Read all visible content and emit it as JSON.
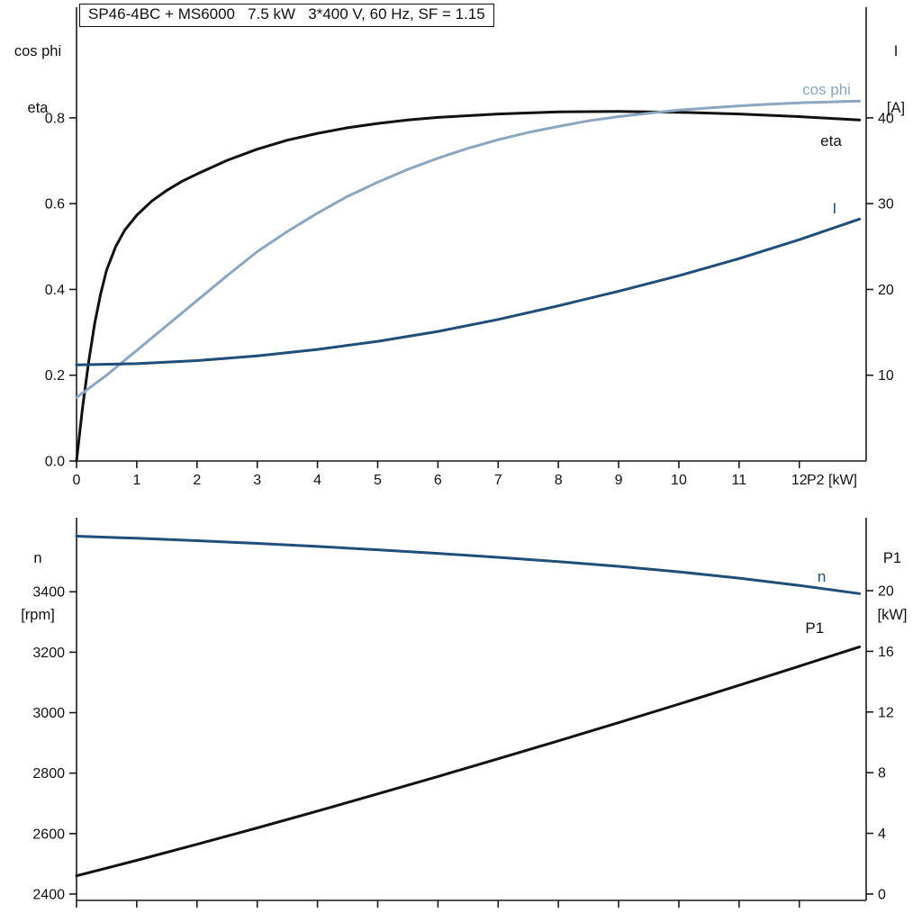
{
  "title_box": "SP46-4BC + MS6000   7.5 kW   3*400 V, 60 Hz, SF = 1.15",
  "colors": {
    "axis": "#1a1a1a",
    "black": "#111111",
    "dark_blue": "#1f4e79",
    "light_blue": "#8ca6c0"
  },
  "corner_labels": {
    "top_left_line1": "cos phi",
    "top_left_line2": "eta",
    "top_right_line1": "I",
    "top_right_line2": "[A]",
    "bottom_left_line1": "n",
    "bottom_left_line2": "[rpm]",
    "bottom_right_line1": "P1",
    "bottom_right_line2": "[kW]"
  },
  "chart_data": [
    {
      "type": "line",
      "title": "SP46-4BC + MS6000   7.5 kW   3*400 V, 60 Hz, SF = 1.15",
      "xlabel": "P2 [kW]",
      "x_range": [
        0,
        13.11
      ],
      "x_ticks": [
        0,
        1,
        2,
        3,
        4,
        5,
        6,
        7,
        8,
        9,
        10,
        11,
        12
      ],
      "x_tick_labels": [
        "0",
        "1",
        "2",
        "3",
        "4",
        "5",
        "6",
        "7",
        "8",
        "9",
        "10",
        "11",
        "12"
      ],
      "show_x_tick_labels": true,
      "grid": false,
      "left_axis": {
        "title": "cos phi / eta",
        "range": [
          0,
          1.058
        ],
        "ticks": [
          0,
          0.2,
          0.4,
          0.6,
          0.8
        ],
        "tick_labels": [
          "0.0",
          "0.2",
          "0.4",
          "0.6",
          "0.8"
        ]
      },
      "right_axis": {
        "title": "I [A]",
        "range": [
          0,
          52.9
        ],
        "ticks": [
          10,
          20,
          30,
          40
        ],
        "tick_labels": [
          "10",
          "20",
          "30",
          "40"
        ]
      },
      "series": [
        {
          "name": "eta",
          "label": "eta",
          "axis": "left",
          "color": "black",
          "label_at": [
            12.35,
            0.745
          ],
          "x": [
            0,
            0.1,
            0.2,
            0.3,
            0.4,
            0.5,
            0.65,
            0.8,
            1.0,
            1.25,
            1.5,
            1.75,
            2.0,
            2.5,
            3.0,
            3.5,
            4.0,
            4.5,
            5.0,
            5.5,
            6.0,
            7.0,
            8.0,
            9.0,
            10.0,
            11.0,
            12.0,
            13.0
          ],
          "values": [
            0,
            0.125,
            0.23,
            0.32,
            0.39,
            0.445,
            0.5,
            0.538,
            0.573,
            0.606,
            0.631,
            0.652,
            0.669,
            0.701,
            0.727,
            0.748,
            0.764,
            0.777,
            0.787,
            0.795,
            0.801,
            0.809,
            0.814,
            0.815,
            0.813,
            0.809,
            0.803,
            0.795
          ]
        },
        {
          "name": "cos phi",
          "label": "cos phi",
          "axis": "left",
          "color": "light_blue",
          "label_at": [
            12.05,
            0.865
          ],
          "x": [
            0,
            0.5,
            1.0,
            1.5,
            2.0,
            2.5,
            3.0,
            3.5,
            4.0,
            4.5,
            5.0,
            5.5,
            6.0,
            6.5,
            7.0,
            7.5,
            8.0,
            8.5,
            9.0,
            9.5,
            10.0,
            10.5,
            11.0,
            11.5,
            12.0,
            12.5,
            13.0
          ],
          "values": [
            0.148,
            0.2,
            0.258,
            0.316,
            0.374,
            0.432,
            0.488,
            0.535,
            0.578,
            0.617,
            0.65,
            0.68,
            0.706,
            0.729,
            0.749,
            0.766,
            0.78,
            0.793,
            0.803,
            0.811,
            0.818,
            0.823,
            0.828,
            0.832,
            0.835,
            0.837,
            0.839
          ]
        },
        {
          "name": "I",
          "label": "I",
          "axis": "right",
          "color": "dark_blue",
          "label_at": [
            12.55,
            29.4
          ],
          "x": [
            0,
            1,
            2,
            3,
            4,
            5,
            6,
            7,
            8,
            9,
            10,
            11,
            12,
            13
          ],
          "values": [
            11.2,
            11.35,
            11.7,
            12.25,
            13.0,
            13.95,
            15.1,
            16.5,
            18.1,
            19.8,
            21.6,
            23.6,
            25.8,
            28.2
          ]
        }
      ]
    },
    {
      "type": "line",
      "title": "",
      "xlabel": "",
      "x_range": [
        0,
        13.11
      ],
      "x_ticks": [
        0,
        1,
        2,
        3,
        4,
        5,
        6,
        7,
        8,
        9,
        10,
        11,
        12
      ],
      "x_tick_labels": [
        "0",
        "1",
        "2",
        "3",
        "4",
        "5",
        "6",
        "7",
        "8",
        "9",
        "10",
        "11",
        "12"
      ],
      "show_x_tick_labels": false,
      "grid": false,
      "left_axis": {
        "title": "n [rpm]",
        "range": [
          2379,
          3645
        ],
        "ticks": [
          2400,
          2600,
          2800,
          3000,
          3200,
          3400
        ],
        "tick_labels": [
          "2400",
          "2600",
          "2800",
          "3000",
          "3200",
          "3400"
        ]
      },
      "right_axis": {
        "title": "P1 [kW]",
        "range": [
          -0.42,
          24.81
        ],
        "ticks": [
          0,
          4,
          8,
          12,
          16,
          20
        ],
        "tick_labels": [
          "0",
          "4",
          "8",
          "12",
          "16",
          "20"
        ]
      },
      "series": [
        {
          "name": "n",
          "label": "n",
          "axis": "left",
          "color": "dark_blue",
          "label_at": [
            12.3,
            3448
          ],
          "x": [
            0,
            1,
            2,
            3,
            4,
            5,
            6,
            7,
            8,
            9,
            10,
            11,
            12,
            13
          ],
          "values": [
            3584,
            3577,
            3569,
            3560,
            3550,
            3539,
            3527,
            3514,
            3500,
            3484,
            3466,
            3445,
            3421,
            3394
          ]
        },
        {
          "name": "P1",
          "label": "P1",
          "axis": "right",
          "color": "black",
          "label_at": [
            12.1,
            17.5
          ],
          "x": [
            0,
            1,
            2,
            3,
            4,
            5,
            6,
            7,
            8,
            9,
            10,
            11,
            12,
            13
          ],
          "values": [
            1.2,
            2.22,
            3.28,
            4.36,
            5.47,
            6.6,
            7.75,
            8.92,
            10.1,
            11.3,
            12.52,
            13.76,
            15.02,
            16.3
          ]
        }
      ]
    }
  ]
}
